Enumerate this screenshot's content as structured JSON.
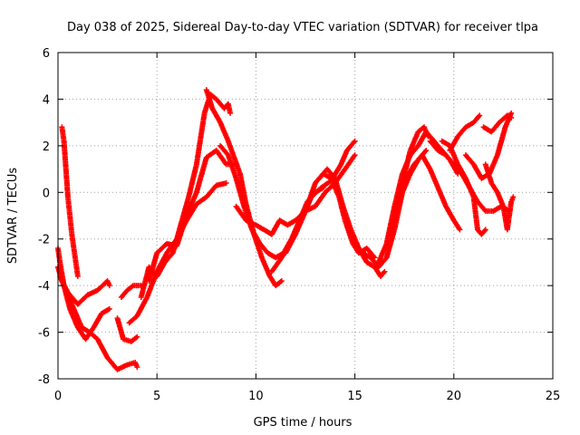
{
  "chart_data": {
    "type": "scatter",
    "title": "Day 038 of 2025, Sidereal Day-to-day VTEC variation (SDTVAR) for receiver tlpa",
    "xlabel": "GPS time / hours",
    "ylabel": "SDTVAR / TECUs",
    "xlim": [
      0,
      25
    ],
    "ylim": [
      -8,
      6
    ],
    "x_ticks": [
      0,
      5,
      10,
      15,
      20,
      25
    ],
    "y_ticks": [
      -8,
      -6,
      -4,
      -2,
      0,
      2,
      4,
      6
    ],
    "x_tick_labels": [
      "0",
      "5",
      "10",
      "15",
      "20",
      "25"
    ],
    "y_tick_labels": [
      "-8",
      "-6",
      "-4",
      "-2",
      "0",
      "2",
      "4",
      "6"
    ],
    "grid": true,
    "legend": "none",
    "marker": "+",
    "color": "#ff0000",
    "series": [
      {
        "points": [
          [
            0.0,
            -3.2
          ],
          [
            0.2,
            -3.8
          ],
          [
            0.5,
            -4.3
          ],
          [
            1.0,
            -4.8
          ],
          [
            1.5,
            -4.4
          ],
          [
            2.0,
            -4.2
          ],
          [
            2.5,
            -3.8
          ],
          [
            2.6,
            -4.0
          ]
        ]
      },
      {
        "points": [
          [
            0.0,
            -2.4
          ],
          [
            0.1,
            -3.0
          ],
          [
            0.3,
            -4.0
          ],
          [
            0.6,
            -5.0
          ],
          [
            1.0,
            -5.8
          ],
          [
            1.4,
            -6.3
          ],
          [
            1.8,
            -5.8
          ],
          [
            2.2,
            -5.2
          ],
          [
            2.6,
            -5.0
          ]
        ]
      },
      {
        "points": [
          [
            0.1,
            -3.6
          ],
          [
            0.4,
            -4.2
          ],
          [
            0.8,
            -5.0
          ],
          [
            1.2,
            -5.8
          ],
          [
            1.6,
            -6.0
          ],
          [
            2.0,
            -6.3
          ],
          [
            2.5,
            -7.1
          ],
          [
            3.0,
            -7.6
          ],
          [
            3.5,
            -7.4
          ],
          [
            3.9,
            -7.3
          ],
          [
            4.0,
            -7.5
          ]
        ]
      },
      {
        "points": [
          [
            0.2,
            2.8
          ],
          [
            0.3,
            2.2
          ],
          [
            0.4,
            1.0
          ],
          [
            0.5,
            -0.2
          ],
          [
            0.6,
            -1.0
          ],
          [
            0.7,
            -1.8
          ],
          [
            0.8,
            -2.4
          ],
          [
            0.9,
            -3.0
          ],
          [
            1.0,
            -3.6
          ]
        ]
      },
      {
        "points": [
          [
            3.0,
            -5.4
          ],
          [
            3.3,
            -6.3
          ],
          [
            3.7,
            -6.4
          ],
          [
            4.0,
            -6.2
          ]
        ]
      },
      {
        "points": [
          [
            3.2,
            -4.5
          ],
          [
            3.5,
            -4.2
          ],
          [
            3.8,
            -4.0
          ],
          [
            4.2,
            -4.0
          ]
        ]
      },
      {
        "points": [
          [
            3.6,
            -5.6
          ],
          [
            4.0,
            -5.3
          ],
          [
            4.5,
            -4.5
          ],
          [
            5.0,
            -3.4
          ],
          [
            5.5,
            -2.6
          ],
          [
            6.0,
            -2.0
          ],
          [
            6.5,
            -1.2
          ],
          [
            7.0,
            -0.5
          ],
          [
            7.5,
            -0.2
          ],
          [
            8.0,
            0.3
          ],
          [
            8.5,
            0.4
          ]
        ]
      },
      {
        "points": [
          [
            4.6,
            -3.8
          ],
          [
            5.0,
            -2.6
          ],
          [
            5.5,
            -2.2
          ],
          [
            6.0,
            -2.3
          ],
          [
            6.5,
            -1.0
          ],
          [
            7.0,
            0.0
          ],
          [
            7.5,
            1.5
          ],
          [
            8.0,
            1.8
          ],
          [
            8.5,
            1.2
          ],
          [
            9.0,
            1.2
          ]
        ]
      },
      {
        "points": [
          [
            4.2,
            -4.5
          ],
          [
            4.6,
            -3.2
          ],
          [
            5.0,
            -3.6
          ],
          [
            5.4,
            -3.0
          ],
          [
            5.8,
            -2.6
          ],
          [
            6.2,
            -1.4
          ],
          [
            6.6,
            -0.2
          ],
          [
            7.0,
            1.2
          ],
          [
            7.4,
            3.4
          ],
          [
            7.7,
            4.2
          ],
          [
            8.0,
            4.0
          ],
          [
            8.4,
            3.6
          ],
          [
            8.6,
            3.8
          ],
          [
            8.7,
            3.4
          ]
        ]
      },
      {
        "points": [
          [
            7.5,
            4.4
          ],
          [
            7.8,
            3.6
          ],
          [
            8.2,
            3.0
          ],
          [
            8.6,
            2.2
          ],
          [
            8.9,
            1.5
          ],
          [
            9.2,
            0.8
          ],
          [
            9.5,
            -0.5
          ],
          [
            9.9,
            -1.8
          ],
          [
            10.3,
            -2.8
          ],
          [
            10.7,
            -3.6
          ],
          [
            11.0,
            -4.0
          ],
          [
            11.3,
            -3.8
          ]
        ]
      },
      {
        "points": [
          [
            8.2,
            2.0
          ],
          [
            8.6,
            1.6
          ],
          [
            9.0,
            0.6
          ],
          [
            9.4,
            -0.6
          ],
          [
            9.8,
            -1.6
          ],
          [
            10.2,
            -2.2
          ],
          [
            10.6,
            -2.6
          ],
          [
            11.0,
            -2.8
          ],
          [
            11.4,
            -2.6
          ],
          [
            11.8,
            -2.0
          ],
          [
            12.2,
            -1.2
          ],
          [
            12.6,
            -0.4
          ],
          [
            13.0,
            0.0
          ],
          [
            13.4,
            0.2
          ]
        ]
      },
      {
        "points": [
          [
            9.0,
            -0.6
          ],
          [
            9.5,
            -1.2
          ],
          [
            10.0,
            -1.4
          ],
          [
            10.4,
            -1.6
          ],
          [
            10.8,
            -1.8
          ],
          [
            11.2,
            -1.2
          ],
          [
            11.6,
            -1.4
          ],
          [
            12.0,
            -1.2
          ],
          [
            12.5,
            -0.8
          ],
          [
            13.0,
            -0.6
          ],
          [
            13.5,
            0.0
          ],
          [
            14.0,
            0.4
          ],
          [
            14.5,
            1.0
          ],
          [
            15.0,
            1.6
          ]
        ]
      },
      {
        "points": [
          [
            10.8,
            -3.4
          ],
          [
            11.3,
            -2.8
          ],
          [
            11.8,
            -2.0
          ],
          [
            12.3,
            -1.2
          ],
          [
            12.8,
            -0.2
          ],
          [
            13.3,
            0.2
          ],
          [
            13.8,
            0.5
          ],
          [
            14.3,
            1.2
          ],
          [
            14.6,
            1.8
          ],
          [
            15.0,
            2.2
          ]
        ]
      },
      {
        "points": [
          [
            11.5,
            -2.6
          ],
          [
            12.0,
            -1.8
          ],
          [
            12.5,
            -0.8
          ],
          [
            13.0,
            0.4
          ],
          [
            13.4,
            0.8
          ],
          [
            13.8,
            0.6
          ],
          [
            14.2,
            -0.2
          ],
          [
            14.5,
            -1.2
          ],
          [
            14.9,
            -2.2
          ],
          [
            15.2,
            -2.6
          ],
          [
            15.6,
            -2.4
          ],
          [
            16.0,
            -2.8
          ]
        ]
      },
      {
        "points": [
          [
            13.2,
            0.6
          ],
          [
            13.6,
            1.0
          ],
          [
            14.0,
            0.6
          ],
          [
            14.4,
            -0.6
          ],
          [
            14.8,
            -1.6
          ],
          [
            15.2,
            -2.4
          ],
          [
            15.6,
            -3.0
          ],
          [
            16.0,
            -3.2
          ],
          [
            16.3,
            -3.6
          ],
          [
            16.5,
            -3.4
          ]
        ]
      },
      {
        "points": [
          [
            14.6,
            -1.4
          ],
          [
            15.0,
            -2.2
          ],
          [
            15.4,
            -2.6
          ],
          [
            15.8,
            -2.8
          ],
          [
            16.2,
            -3.2
          ],
          [
            16.6,
            -2.8
          ],
          [
            17.0,
            -1.6
          ],
          [
            17.4,
            0.0
          ],
          [
            17.8,
            0.8
          ],
          [
            18.2,
            1.4
          ],
          [
            18.6,
            1.8
          ]
        ]
      },
      {
        "points": [
          [
            16.2,
            -3.0
          ],
          [
            16.6,
            -2.2
          ],
          [
            17.0,
            -0.6
          ],
          [
            17.4,
            0.8
          ],
          [
            17.8,
            1.6
          ],
          [
            18.2,
            2.0
          ],
          [
            18.6,
            2.6
          ],
          [
            19.0,
            2.2
          ],
          [
            19.4,
            1.8
          ],
          [
            19.8,
            1.4
          ],
          [
            20.2,
            0.8
          ]
        ]
      },
      {
        "points": [
          [
            16.8,
            -1.8
          ],
          [
            17.2,
            -0.6
          ],
          [
            17.6,
            0.6
          ],
          [
            18.0,
            1.2
          ],
          [
            18.4,
            1.6
          ],
          [
            18.8,
            1.0
          ],
          [
            19.2,
            0.2
          ],
          [
            19.6,
            -0.6
          ],
          [
            20.0,
            -1.2
          ],
          [
            20.3,
            -1.6
          ]
        ]
      },
      {
        "points": [
          [
            17.0,
            -0.8
          ],
          [
            17.4,
            0.4
          ],
          [
            17.8,
            1.8
          ],
          [
            18.2,
            2.6
          ],
          [
            18.5,
            2.8
          ],
          [
            18.7,
            2.4
          ]
        ]
      },
      {
        "points": [
          [
            18.8,
            2.2
          ],
          [
            19.2,
            1.8
          ],
          [
            19.6,
            1.6
          ],
          [
            20.0,
            1.2
          ],
          [
            20.4,
            0.8
          ],
          [
            20.8,
            0.2
          ],
          [
            21.2,
            -0.4
          ],
          [
            21.6,
            -0.8
          ],
          [
            22.0,
            -0.8
          ],
          [
            22.4,
            -0.6
          ],
          [
            22.8,
            -0.8
          ]
        ]
      },
      {
        "points": [
          [
            19.4,
            2.2
          ],
          [
            19.8,
            2.0
          ],
          [
            20.2,
            1.2
          ],
          [
            20.6,
            0.6
          ],
          [
            21.0,
            -0.2
          ],
          [
            21.2,
            -1.6
          ],
          [
            21.4,
            -1.8
          ],
          [
            21.6,
            -1.6
          ]
        ]
      },
      {
        "points": [
          [
            19.8,
            1.8
          ],
          [
            20.2,
            2.4
          ],
          [
            20.6,
            2.8
          ],
          [
            21.0,
            3.0
          ],
          [
            21.3,
            3.3
          ]
        ]
      },
      {
        "points": [
          [
            20.6,
            1.6
          ],
          [
            21.0,
            1.2
          ],
          [
            21.4,
            0.6
          ],
          [
            21.8,
            0.8
          ],
          [
            22.2,
            1.6
          ],
          [
            22.6,
            2.8
          ],
          [
            22.9,
            3.4
          ]
        ]
      },
      {
        "points": [
          [
            21.6,
            1.2
          ],
          [
            21.9,
            0.4
          ],
          [
            22.2,
            0.0
          ],
          [
            22.5,
            -0.6
          ],
          [
            22.7,
            -1.6
          ],
          [
            22.9,
            -0.4
          ],
          [
            23.0,
            -0.2
          ]
        ]
      },
      {
        "points": [
          [
            21.5,
            2.8
          ],
          [
            21.9,
            2.6
          ],
          [
            22.3,
            3.0
          ],
          [
            22.7,
            3.3
          ],
          [
            22.9,
            3.2
          ]
        ]
      }
    ]
  }
}
